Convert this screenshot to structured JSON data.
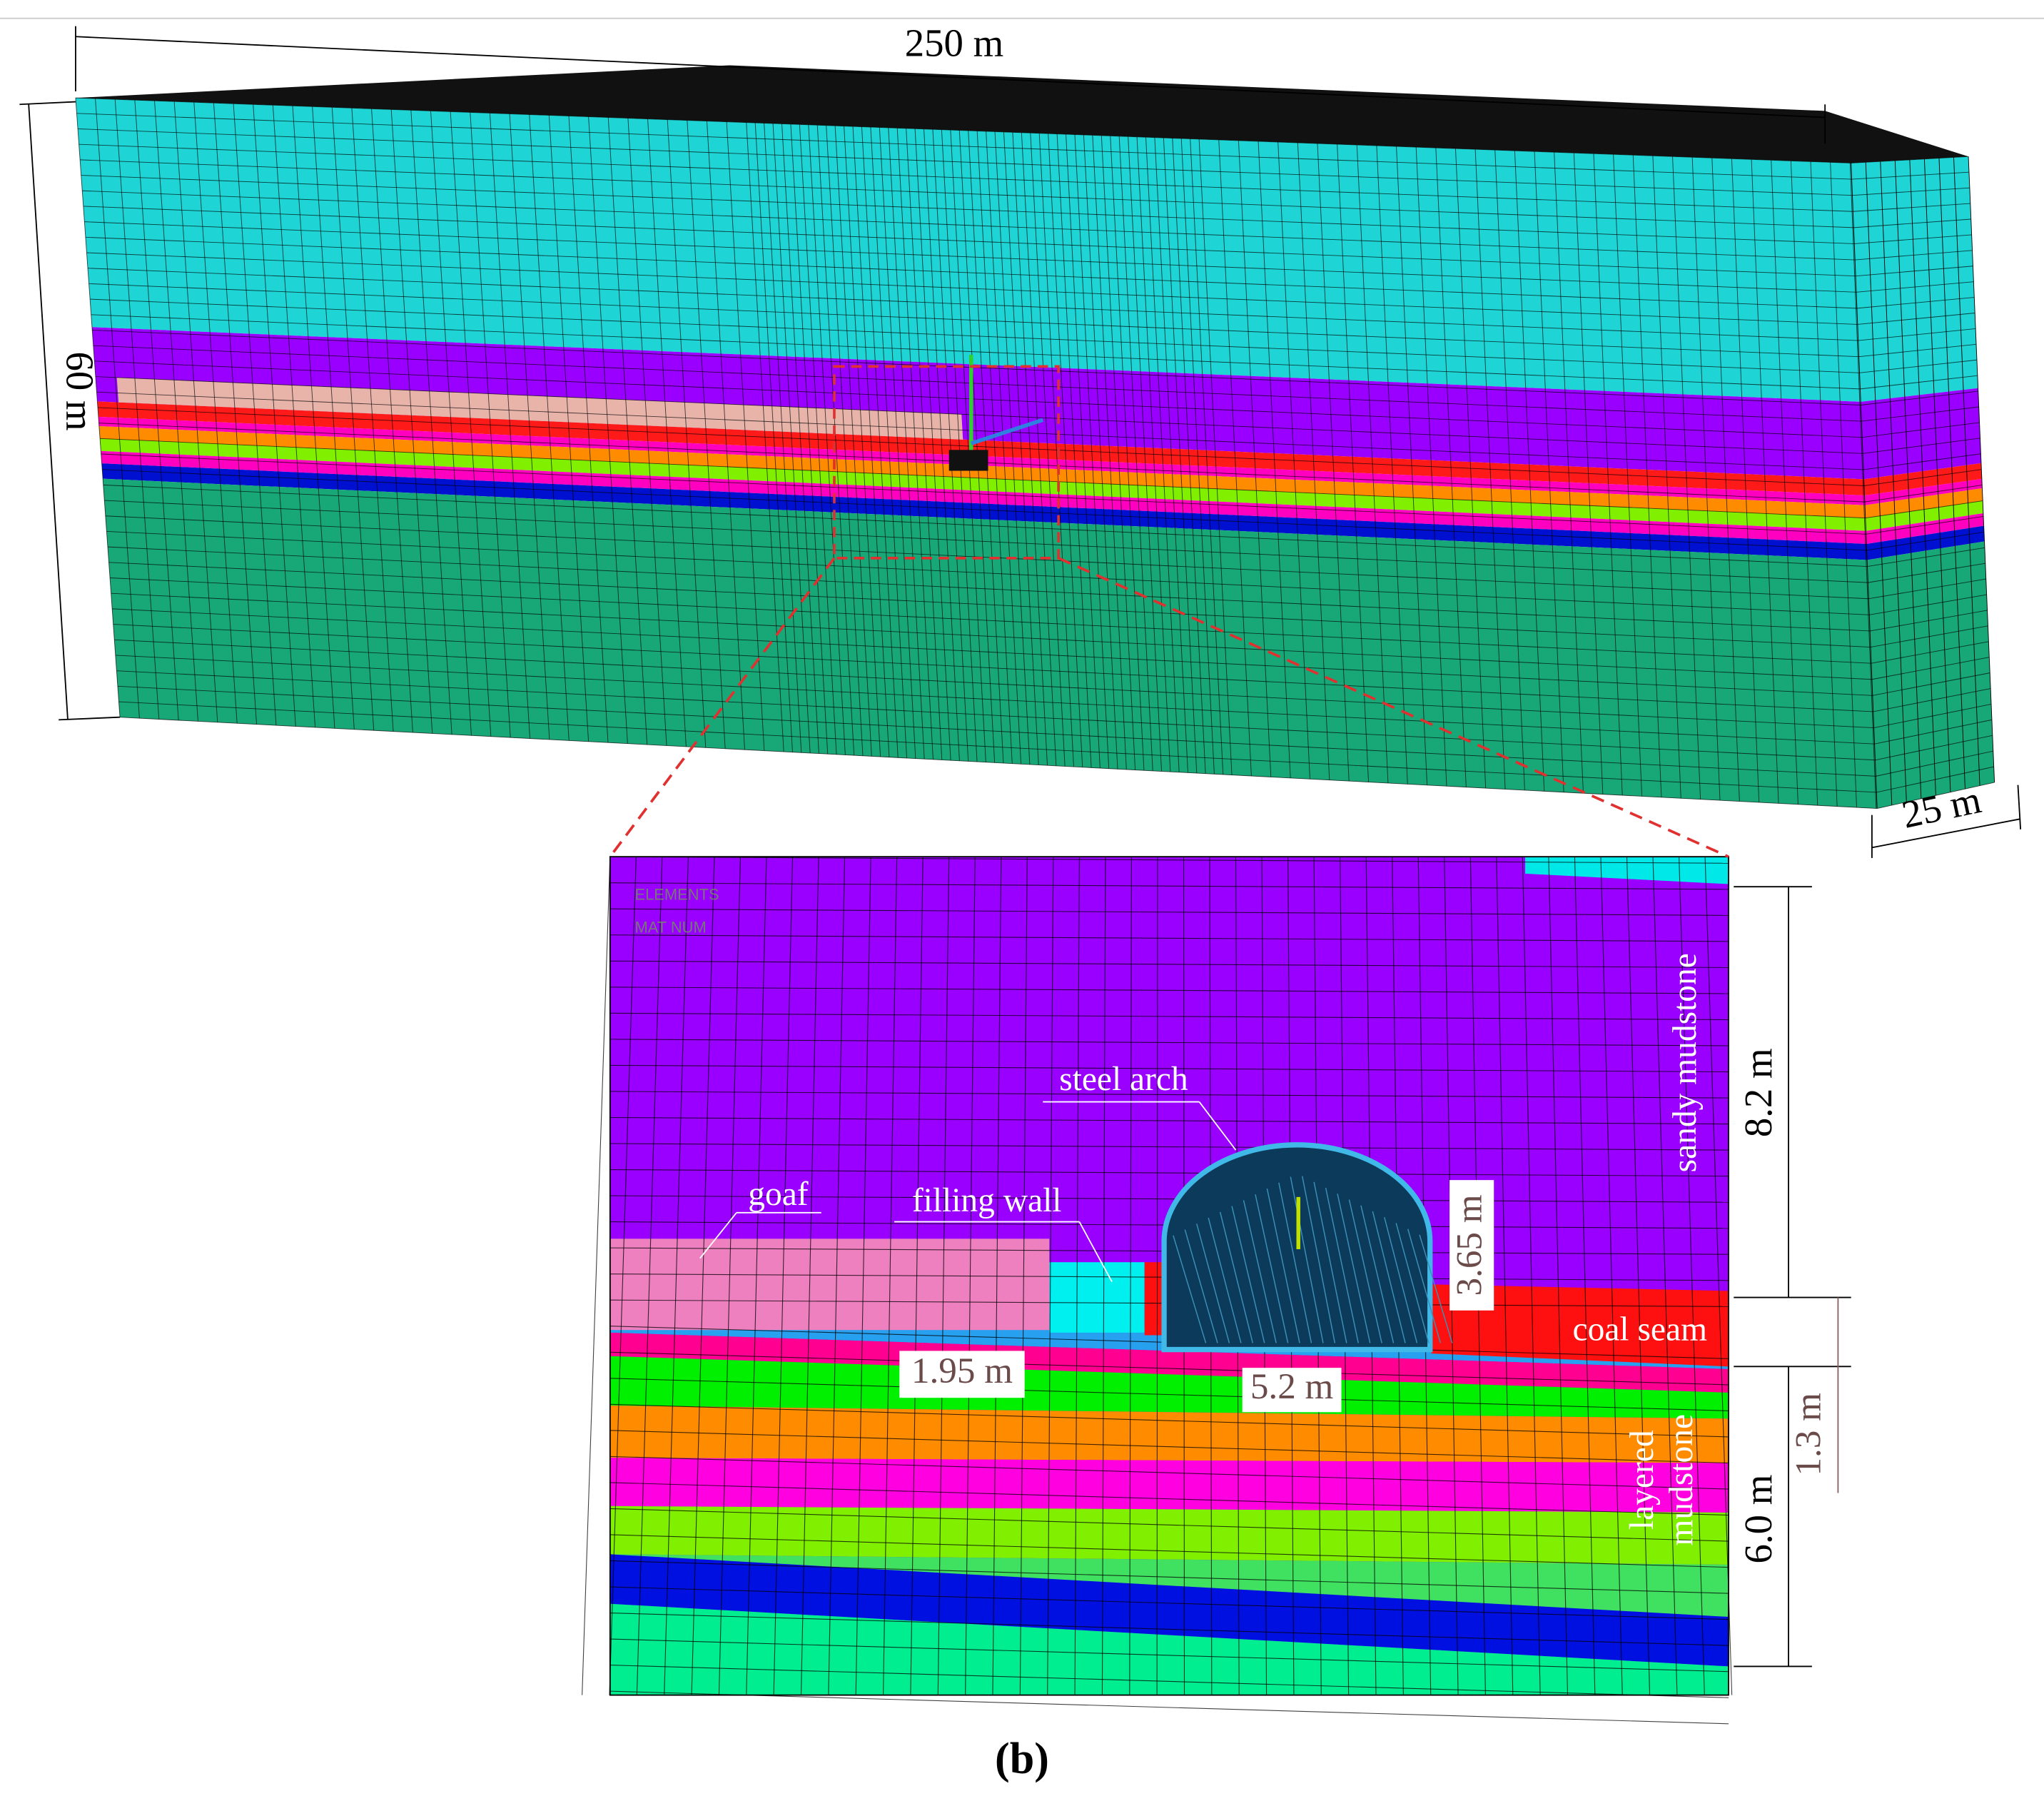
{
  "model": {
    "length_label": "250 m",
    "height_label": "60 m",
    "width_label": "25 m"
  },
  "inset": {
    "legend": [
      "ELEMENTS",
      "MAT NUM"
    ],
    "labels": {
      "steel_arch": "steel arch",
      "goaf": "goaf",
      "filling_wall": "filling wall",
      "sandy_mudstone": "sandy mudstone",
      "coal_seam": "coal seam",
      "layered_mudstone": [
        "layered",
        "mudstone"
      ]
    },
    "dimensions": {
      "roadway_height": "3.65 m",
      "filling_wall_width": "1.95 m",
      "roadway_width": "5.2 m",
      "roof_thickness": "8.2 m",
      "coal_thickness": "1.3 m",
      "floor_thickness": "6.0 m"
    }
  },
  "panel_label": "(b)"
}
